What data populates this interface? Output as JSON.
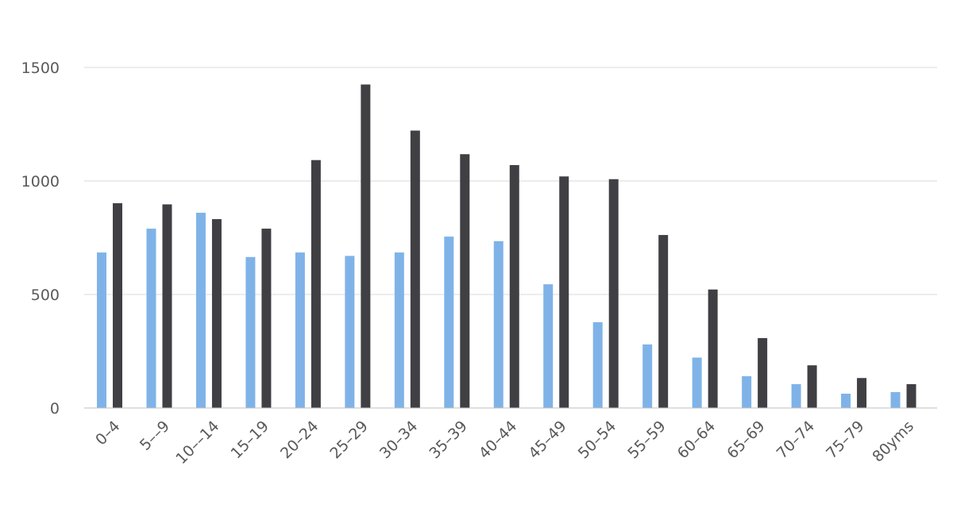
{
  "chart_data": {
    "type": "bar",
    "title": "",
    "xlabel": "",
    "ylabel": "",
    "ylim": [
      0,
      1500
    ],
    "yticks": [
      0,
      500,
      1000,
      1500
    ],
    "grid": true,
    "legend": "none",
    "categories": [
      "0–4",
      "5––9",
      "10––14",
      "15–19",
      "20–24",
      "25–29",
      "30–34",
      "35–39",
      "40–44",
      "45–49",
      "50–54",
      "55–59",
      "60–64",
      "65–69",
      "70–74",
      "75–79",
      "80yms"
    ],
    "series": [
      {
        "color": "#7fb3e8",
        "values": [
          685,
          790,
          860,
          665,
          685,
          670,
          685,
          755,
          735,
          545,
          378,
          280,
          222,
          140,
          105,
          63,
          70
        ]
      },
      {
        "color": "#404044",
        "values": [
          902,
          897,
          832,
          790,
          1092,
          1425,
          1222,
          1118,
          1070,
          1020,
          1008,
          762,
          522,
          308,
          188,
          132,
          105
        ]
      }
    ]
  }
}
